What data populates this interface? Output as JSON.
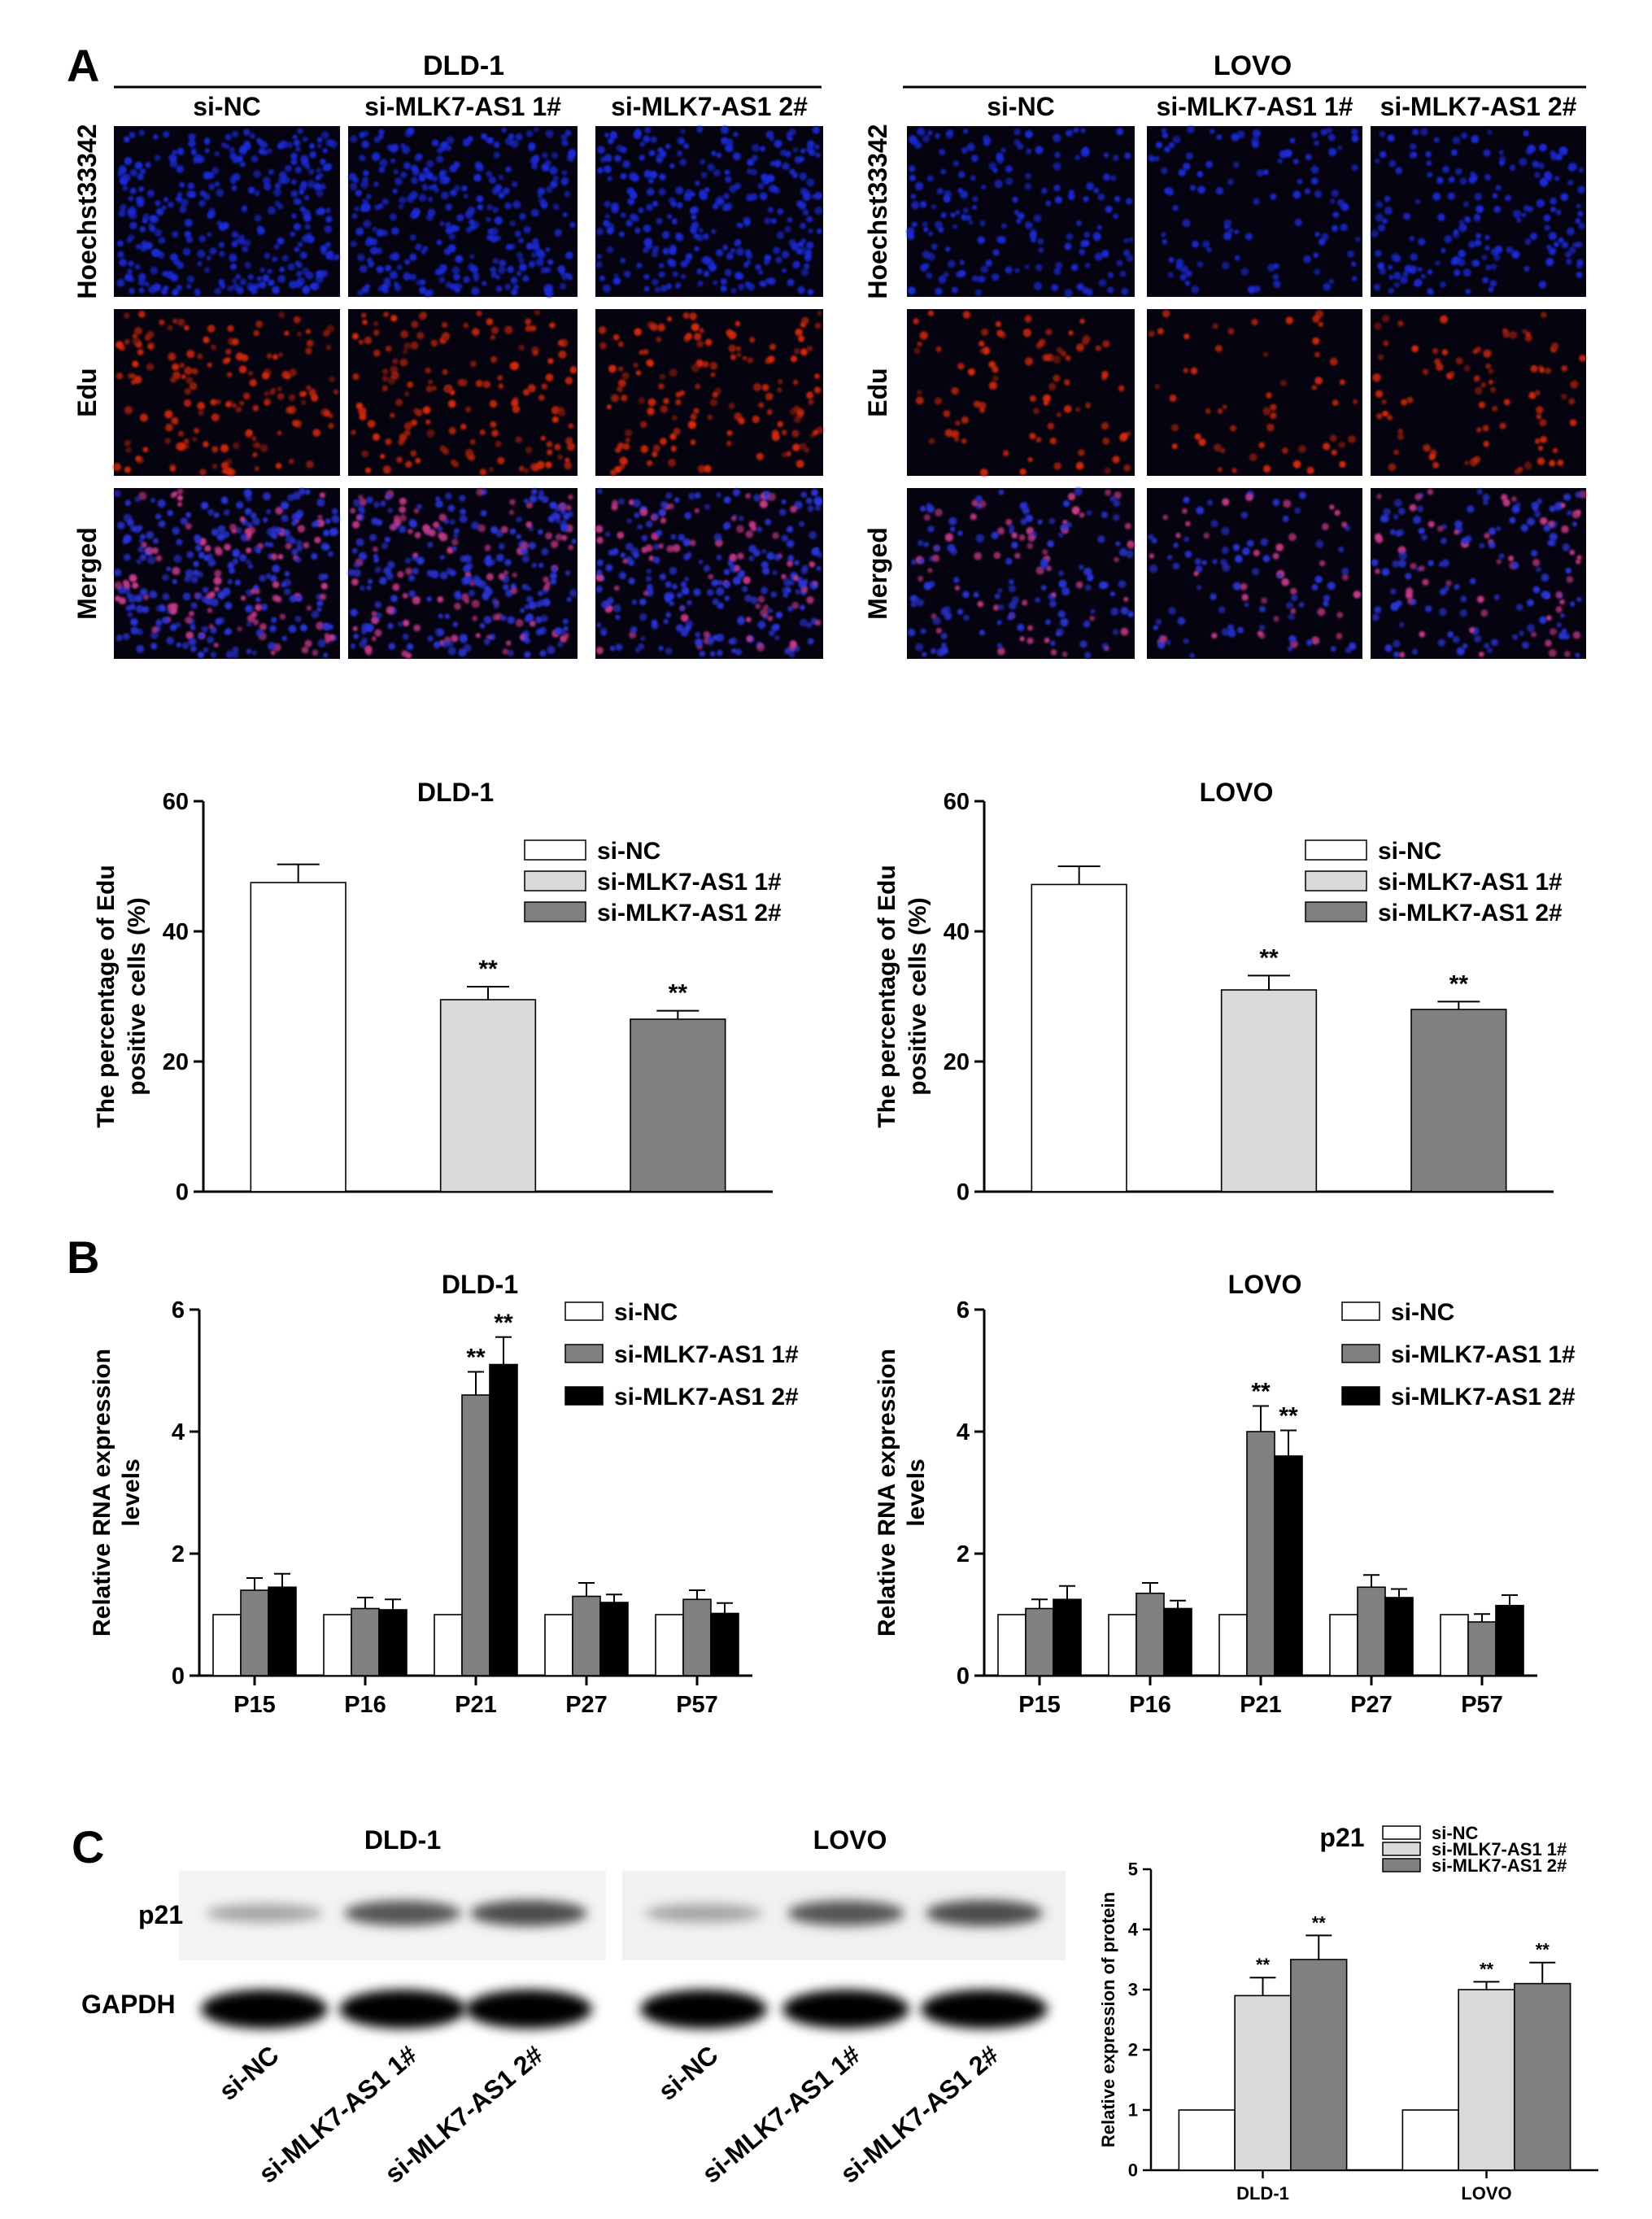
{
  "panels": {
    "A": "A",
    "B": "B",
    "C": "C"
  },
  "microscopy": {
    "cell_lines": [
      "DLD-1",
      "LOVO"
    ],
    "columns": [
      "si-NC",
      "si-MLK7-AS1 1#",
      "si-MLK7-AS1 2#"
    ],
    "rows": [
      "Hoechst33342",
      "Edu",
      "Merged"
    ],
    "row_colors": [
      "#1a2bd6",
      "#d62a10",
      "#7a3bd0"
    ],
    "cell_density": [
      [
        1.0,
        0.95,
        0.9
      ],
      [
        0.55,
        0.35,
        0.55
      ]
    ]
  },
  "chart_data": [
    {
      "type": "bar",
      "title": "DLD-1",
      "ylabel": "The percentage of Edu positive cells (%)",
      "ylabel_lines": [
        "The percentage of Edu",
        "positive cells (%)"
      ],
      "ylim": [
        0,
        60
      ],
      "yticks": [
        0,
        20,
        40,
        60
      ],
      "categories": [
        "si-NC",
        "si-MLK7-AS1 1#",
        "si-MLK7-AS1 2#"
      ],
      "values": [
        47.5,
        29.5,
        26.5
      ],
      "errors": [
        2.8,
        2.0,
        1.3
      ],
      "colors": [
        "#ffffff",
        "#d9d9d9",
        "#808080"
      ],
      "significance": [
        "",
        "**",
        "**"
      ],
      "legend": [
        "si-NC",
        "si-MLK7-AS1 1#",
        "si-MLK7-AS1 2#"
      ],
      "legend_position": "top-right",
      "grid": false
    },
    {
      "type": "bar",
      "title": "LOVO",
      "ylabel": "The percentage of Edu positive cells (%)",
      "ylabel_lines": [
        "The percentage of Edu",
        "positive cells (%)"
      ],
      "ylim": [
        0,
        60
      ],
      "yticks": [
        0,
        20,
        40,
        60
      ],
      "categories": [
        "si-NC",
        "si-MLK7-AS1 1#",
        "si-MLK7-AS1 2#"
      ],
      "values": [
        47.2,
        31.0,
        28.0
      ],
      "errors": [
        2.8,
        2.2,
        1.2
      ],
      "colors": [
        "#ffffff",
        "#d9d9d9",
        "#808080"
      ],
      "significance": [
        "",
        "**",
        "**"
      ],
      "legend": [
        "si-NC",
        "si-MLK7-AS1 1#",
        "si-MLK7-AS1 2#"
      ],
      "legend_position": "top-right",
      "grid": false
    },
    {
      "type": "bar",
      "title": "DLD-1",
      "ylabel": "Relative RNA expression levels",
      "ylabel_lines": [
        "Relative RNA expression",
        "levels"
      ],
      "ylim": [
        0,
        6
      ],
      "yticks": [
        0,
        2,
        4,
        6
      ],
      "categories": [
        "P15",
        "P16",
        "P21",
        "P27",
        "P57"
      ],
      "series": [
        {
          "name": "si-NC",
          "color": "#ffffff",
          "values": [
            1.0,
            1.0,
            1.0,
            1.0,
            1.0
          ],
          "errors": [
            0,
            0,
            0,
            0,
            0
          ],
          "significance": [
            "",
            "",
            "",
            "",
            ""
          ]
        },
        {
          "name": "si-MLK7-AS1 1#",
          "color": "#808080",
          "values": [
            1.4,
            1.1,
            4.6,
            1.3,
            1.25
          ],
          "errors": [
            0.2,
            0.18,
            0.38,
            0.22,
            0.15
          ],
          "significance": [
            "",
            "",
            "**",
            "",
            ""
          ]
        },
        {
          "name": "si-MLK7-AS1 2#",
          "color": "#000000",
          "values": [
            1.45,
            1.08,
            5.1,
            1.2,
            1.02
          ],
          "errors": [
            0.22,
            0.17,
            0.45,
            0.13,
            0.17
          ],
          "significance": [
            "",
            "",
            "**",
            "",
            ""
          ]
        }
      ],
      "legend_position": "top-right",
      "grid": false
    },
    {
      "type": "bar",
      "title": "LOVO",
      "ylabel": "Relative RNA expression levels",
      "ylabel_lines": [
        "Relative RNA expression",
        "levels"
      ],
      "ylim": [
        0,
        6
      ],
      "yticks": [
        0,
        2,
        4,
        6
      ],
      "categories": [
        "P15",
        "P16",
        "P21",
        "P27",
        "P57"
      ],
      "series": [
        {
          "name": "si-NC",
          "color": "#ffffff",
          "values": [
            1.0,
            1.0,
            1.0,
            1.0,
            1.0
          ],
          "errors": [
            0,
            0,
            0,
            0,
            0
          ],
          "significance": [
            "",
            "",
            "",
            "",
            ""
          ]
        },
        {
          "name": "si-MLK7-AS1 1#",
          "color": "#808080",
          "values": [
            1.1,
            1.35,
            4.0,
            1.45,
            0.88
          ],
          "errors": [
            0.15,
            0.17,
            0.42,
            0.2,
            0.13
          ],
          "significance": [
            "",
            "",
            "**",
            "",
            ""
          ]
        },
        {
          "name": "si-MLK7-AS1 2#",
          "color": "#000000",
          "values": [
            1.25,
            1.1,
            3.6,
            1.28,
            1.15
          ],
          "errors": [
            0.22,
            0.13,
            0.42,
            0.14,
            0.17
          ],
          "significance": [
            "",
            "",
            "**",
            "",
            ""
          ]
        }
      ],
      "legend_position": "top-right",
      "grid": false
    },
    {
      "type": "bar",
      "title": "p21",
      "ylabel": "Relative expression of protein",
      "ylim": [
        0,
        5
      ],
      "yticks": [
        0,
        1,
        2,
        3,
        4,
        5
      ],
      "categories": [
        "DLD-1",
        "LOVO"
      ],
      "series": [
        {
          "name": "si-NC",
          "color": "#ffffff",
          "values": [
            1.0,
            1.0
          ],
          "errors": [
            0,
            0
          ],
          "significance": [
            "",
            ""
          ]
        },
        {
          "name": "si-MLK7-AS1 1#",
          "color": "#d9d9d9",
          "values": [
            2.9,
            3.0
          ],
          "errors": [
            0.3,
            0.13
          ],
          "significance": [
            "**",
            "**"
          ]
        },
        {
          "name": "si-MLK7-AS1 2#",
          "color": "#808080",
          "values": [
            3.5,
            3.1
          ],
          "errors": [
            0.4,
            0.35
          ],
          "significance": [
            "**",
            "**"
          ]
        }
      ],
      "legend_position": "top-right",
      "grid": false
    }
  ],
  "western_blot": {
    "groups": [
      "DLD-1",
      "LOVO"
    ],
    "proteins": [
      "p21",
      "GAPDH"
    ],
    "lanes": [
      "si-NC",
      "si-MLK7-AS1 1#",
      "si-MLK7-AS1 2#",
      "si-NC",
      "si-MLK7-AS1 1#",
      "si-MLK7-AS1 2#"
    ],
    "p21_intensity": [
      0.35,
      0.75,
      0.8,
      0.35,
      0.75,
      0.8
    ],
    "gapdh_intensity": [
      1.0,
      1.0,
      1.0,
      1.0,
      0.95,
      0.95
    ]
  }
}
